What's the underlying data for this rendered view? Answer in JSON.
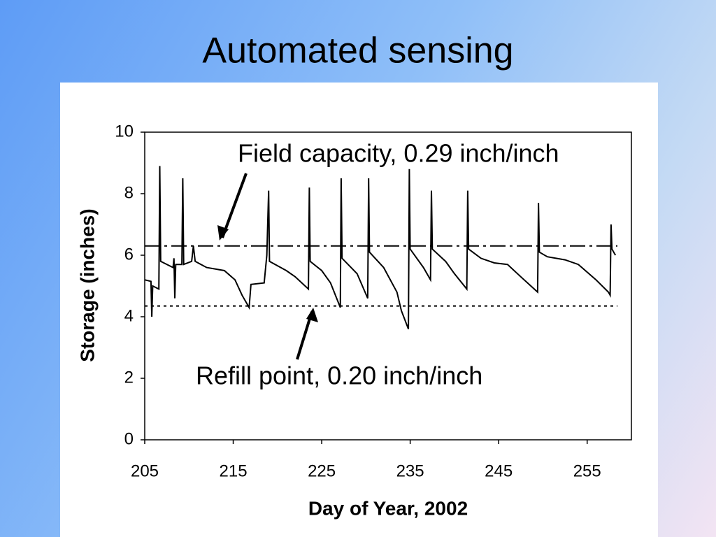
{
  "chart_data": {
    "type": "line",
    "title": "Automated sensing",
    "x_label": "Day of Year, 2002",
    "y_label": "Storage (inches)",
    "xlim": [
      205,
      260
    ],
    "ylim": [
      0,
      10
    ],
    "xticks": [
      205,
      215,
      225,
      235,
      245,
      255
    ],
    "yticks": [
      0,
      2,
      4,
      6,
      8,
      10
    ],
    "color": "#000000",
    "x": [
      205,
      205.7,
      205.8,
      205.9,
      206.6,
      206.7,
      206.8,
      208.2,
      208.3,
      208.4,
      208.5,
      209.2,
      209.3,
      209.4,
      210.3,
      210.5,
      210.7,
      212,
      214,
      215.2,
      216,
      216.8,
      217,
      218.5,
      218.8,
      219,
      219.1,
      221,
      222,
      223.5,
      223.6,
      223.7,
      225,
      226,
      227.1,
      227.2,
      227.3,
      229,
      230.2,
      230.3,
      230.4,
      232,
      233.5,
      234,
      234.8,
      234.9,
      235,
      236.5,
      237.3,
      237.4,
      237.5,
      239,
      240,
      241.4,
      241.5,
      241.6,
      243,
      244.5,
      246,
      247.5,
      249.4,
      249.5,
      249.6,
      250.5,
      252.5,
      254,
      256,
      257.4,
      257.6,
      257.7,
      257.8,
      258.2
    ],
    "values": [
      5.2,
      5.15,
      4.0,
      5.0,
      4.9,
      8.9,
      5.8,
      5.6,
      5.9,
      4.6,
      5.7,
      5.7,
      8.5,
      5.7,
      5.8,
      6.3,
      5.8,
      5.6,
      5.5,
      5.2,
      4.7,
      4.3,
      5.05,
      5.1,
      6.0,
      8.1,
      5.8,
      5.5,
      5.3,
      4.9,
      8.2,
      5.8,
      5.5,
      5.1,
      4.3,
      8.5,
      5.9,
      5.4,
      4.6,
      8.5,
      6.1,
      5.6,
      4.8,
      4.2,
      3.6,
      8.8,
      6.2,
      5.6,
      5.2,
      8.1,
      6.2,
      5.8,
      5.4,
      4.9,
      8.1,
      6.2,
      5.9,
      5.75,
      5.7,
      5.3,
      4.8,
      7.7,
      6.1,
      5.95,
      5.85,
      5.7,
      5.2,
      4.8,
      4.7,
      7.0,
      6.2,
      6.0
    ],
    "reference_lines": [
      {
        "value": 6.3,
        "label": "Field capacity, 0.29 inch/inch",
        "style": "dashdot"
      },
      {
        "value": 4.35,
        "label": "Refill point, 0.20 inch/inch",
        "style": "dotted"
      }
    ]
  }
}
